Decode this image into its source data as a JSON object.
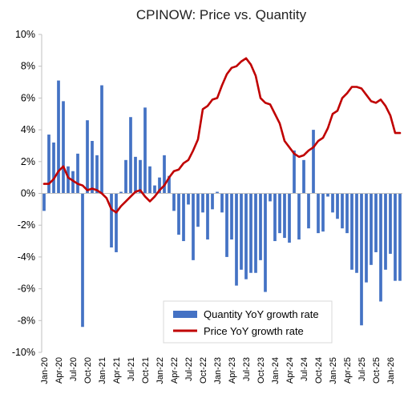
{
  "chart_data": {
    "type": "bar",
    "title": "CPINOW: Price vs. Quantity",
    "xlabel": "",
    "ylabel": "",
    "ylim": [
      -10,
      10
    ],
    "y_ticks": [
      "10%",
      "8%",
      "6%",
      "4%",
      "2%",
      "0%",
      "-2%",
      "-4%",
      "-6%",
      "-8%",
      "-10%"
    ],
    "y_tick_values": [
      10,
      8,
      6,
      4,
      2,
      0,
      -2,
      -4,
      -6,
      -8,
      -10
    ],
    "x_tick_labels": [
      "Jan-20",
      "Apr-20",
      "Jul-20",
      "Oct-20",
      "Jan-21",
      "Apr-21",
      "Jul-21",
      "Oct-21",
      "Jan-22",
      "Apr-22",
      "Jul-22",
      "Oct-22",
      "Jan-23",
      "Apr-23",
      "Jul-23",
      "Oct-23",
      "Jan-24",
      "Apr-24",
      "Jul-24",
      "Oct-24",
      "Jan-25",
      "Apr-25",
      "Jul-25",
      "Oct-25",
      "Jan-26"
    ],
    "categories": [
      "Jan-20",
      "Feb-20",
      "Mar-20",
      "Apr-20",
      "May-20",
      "Jun-20",
      "Jul-20",
      "Aug-20",
      "Sep-20",
      "Oct-20",
      "Nov-20",
      "Dec-20",
      "Jan-21",
      "Feb-21",
      "Mar-21",
      "Apr-21",
      "May-21",
      "Jun-21",
      "Jul-21",
      "Aug-21",
      "Sep-21",
      "Oct-21",
      "Nov-21",
      "Dec-21",
      "Jan-22",
      "Feb-22",
      "Mar-22",
      "Apr-22",
      "May-22",
      "Jun-22",
      "Jul-22",
      "Aug-22",
      "Sep-22",
      "Oct-22",
      "Nov-22",
      "Dec-22",
      "Jan-23",
      "Feb-23",
      "Mar-23",
      "Apr-23",
      "May-23",
      "Jun-23",
      "Jul-23",
      "Aug-23",
      "Sep-23",
      "Oct-23",
      "Nov-23",
      "Dec-23",
      "Jan-24",
      "Feb-24",
      "Mar-24",
      "Apr-24",
      "May-24",
      "Jun-24",
      "Jul-24",
      "Aug-24",
      "Sep-24",
      "Oct-24",
      "Nov-24",
      "Dec-24",
      "Jan-25",
      "Feb-25",
      "Mar-25",
      "Apr-25",
      "May-25",
      "Jun-25",
      "Jul-25",
      "Aug-25",
      "Sep-25",
      "Oct-25",
      "Nov-25",
      "Dec-25",
      "Jan-26",
      "Feb-26",
      "Mar-26"
    ],
    "series": [
      {
        "name": "Quantity YoY growth rate",
        "kind": "bar",
        "color": "#4472C4",
        "values": [
          -1.1,
          3.7,
          3.2,
          7.1,
          5.8,
          1.7,
          1.4,
          2.5,
          -8.4,
          4.6,
          3.3,
          2.4,
          6.8,
          0.0,
          -3.4,
          -3.7,
          0.1,
          2.1,
          4.8,
          2.3,
          2.1,
          5.4,
          1.7,
          0.5,
          1.0,
          2.4,
          1.1,
          -1.1,
          -2.6,
          -3.0,
          -0.7,
          -4.2,
          -2.1,
          -1.2,
          -2.9,
          -1.0,
          0.1,
          -1.2,
          -4.0,
          -2.9,
          -5.8,
          -4.8,
          -5.4,
          -5.0,
          -5.0,
          -4.2,
          -6.2,
          -0.5,
          -3.0,
          -2.5,
          -2.8,
          -3.1,
          2.7,
          -2.9,
          2.1,
          -2.2,
          4.0,
          -2.5,
          -2.4,
          -0.2,
          -1.2,
          -1.6,
          -2.2,
          -2.5,
          -4.8,
          -5.0,
          -8.3,
          -5.6,
          -4.5,
          -3.7,
          -6.8,
          -4.8,
          -3.8,
          -5.5,
          -5.5
        ]
      },
      {
        "name": "Price YoY growth rate",
        "kind": "line",
        "color": "#C00000",
        "values": [
          0.6,
          0.6,
          0.9,
          1.4,
          1.7,
          1.0,
          0.8,
          0.6,
          0.5,
          0.2,
          0.3,
          0.2,
          0.0,
          -0.3,
          -1.0,
          -1.2,
          -0.8,
          -0.5,
          -0.2,
          0.1,
          0.2,
          -0.2,
          -0.5,
          -0.2,
          0.2,
          0.5,
          1.0,
          1.4,
          1.5,
          1.9,
          2.1,
          2.7,
          3.4,
          5.3,
          5.5,
          5.9,
          6.0,
          6.8,
          7.5,
          7.9,
          8.0,
          8.3,
          8.5,
          8.1,
          7.4,
          6.0,
          5.7,
          5.6,
          5.0,
          4.4,
          3.3,
          2.9,
          2.5,
          2.3,
          2.4,
          2.7,
          2.9,
          3.3,
          3.5,
          4.1,
          5.0,
          5.2,
          6.0,
          6.3,
          6.7,
          6.7,
          6.6,
          6.2,
          5.8,
          5.7,
          5.9,
          5.5,
          4.9,
          3.8,
          3.8
        ]
      }
    ],
    "legend": {
      "position": "bottom-center",
      "entries": [
        "Quantity YoY growth rate",
        "Price YoY growth rate"
      ]
    },
    "grid": false
  }
}
